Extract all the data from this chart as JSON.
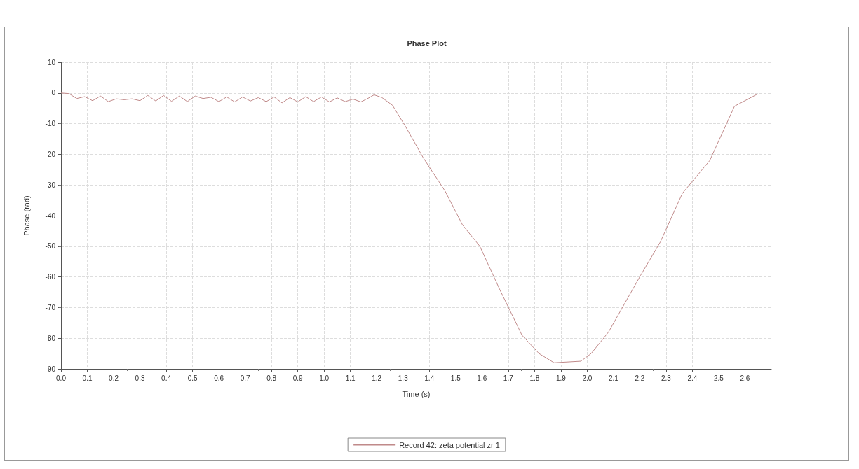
{
  "chart_data": {
    "type": "line",
    "title": "Phase Plot",
    "xlabel": "Time (s)",
    "ylabel": "Phase (rad)",
    "xlim": [
      0,
      2.7
    ],
    "xticks": [
      {
        "value": 0,
        "label": "0.0"
      },
      0.1,
      0.2,
      0.3,
      0.4,
      0.5,
      0.6,
      0.7,
      0.8,
      0.9,
      {
        "value": 1,
        "label": "1.0"
      },
      1.1,
      1.2,
      1.3,
      1.4,
      1.5,
      1.6,
      1.7,
      1.8,
      1.9,
      {
        "value": 2,
        "label": "2.0"
      },
      2.1,
      2.2,
      2.3,
      2.4,
      2.5,
      2.6
    ],
    "ylim": [
      -90,
      10
    ],
    "yticks": [
      -90,
      -80,
      -70,
      -60,
      -50,
      -40,
      -30,
      -20,
      -10,
      0,
      10
    ],
    "grid": true,
    "legend": "bottom",
    "marker": "none",
    "line_style": "solid",
    "series": [
      {
        "name": "Record 42: zeta potential zr 1",
        "color": "#c08a8a",
        "x": [
          0,
          0.03,
          0.06,
          0.09,
          0.12,
          0.15,
          0.18,
          0.21,
          0.24,
          0.27,
          0.3,
          0.33,
          0.36,
          0.39,
          0.42,
          0.45,
          0.48,
          0.51,
          0.54,
          0.57,
          0.6,
          0.63,
          0.66,
          0.69,
          0.72,
          0.75,
          0.78,
          0.81,
          0.84,
          0.87,
          0.9,
          0.93,
          0.96,
          0.99,
          1.02,
          1.05,
          1.08,
          1.11,
          1.14,
          1.17,
          1.19,
          1.22,
          1.26,
          1.31,
          1.376,
          1.46,
          1.526,
          1.592,
          1.667,
          1.752,
          1.817,
          1.874,
          1.976,
          2.015,
          2.081,
          2.203,
          2.278,
          2.362,
          2.466,
          2.56,
          2.644
        ],
        "values": [
          0,
          -0.2,
          -1.8,
          -1.2,
          -2.5,
          -1.0,
          -2.8,
          -1.9,
          -2.2,
          -1.9,
          -2.5,
          -0.8,
          -2.6,
          -0.8,
          -2.7,
          -1.0,
          -2.8,
          -1.0,
          -1.8,
          -1.4,
          -2.8,
          -1.3,
          -2.9,
          -1.3,
          -2.6,
          -1.5,
          -2.8,
          -1.3,
          -3.2,
          -1.5,
          -2.9,
          -1.2,
          -2.8,
          -1.3,
          -2.9,
          -1.6,
          -2.8,
          -2.0,
          -2.9,
          -1.6,
          -0.6,
          -1.5,
          -4,
          -11,
          -21,
          -32,
          -43,
          -50,
          -64,
          -79,
          -85,
          -88,
          -87.5,
          -85,
          -78,
          -59.5,
          -48.6,
          -32.7,
          -22,
          -4.3,
          -0.5
        ]
      }
    ]
  }
}
